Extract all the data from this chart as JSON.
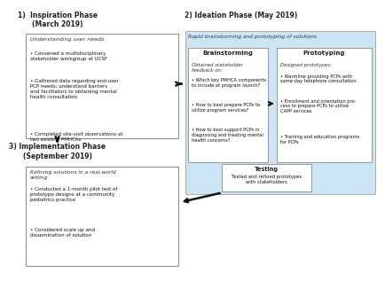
{
  "bg_color": "#ffffff",
  "light_blue_bg": "#cce5f5",
  "phase1": {
    "title": "1)  Inspiration Phase\n(March 2019)",
    "subtitle": "Understanding user needs",
    "bullets": [
      "Convened a multidisciplinary\nstakeholder workgroup at UCSF",
      "Gathered data regarding end-user\nPCP needs; understand barriers\nand facilitators to obtaining mental\nhealth consultation",
      "Completed site-visit observations at\ntwo existing PMHCAs"
    ]
  },
  "phase2": {
    "title": "2) Ideation Phase (May 2019)",
    "subtitle": "Rapid brainstorming and prototyping of solutions",
    "brainstorming_title": "Brainstorming",
    "brainstorming_subtitle": "Obtained stakeholder\nfeedback on:",
    "brainstorming_bullets": [
      "Which key PMHCA components\nto include at program launch?",
      "How to best prepare PCPs to\nutilize program services?",
      "How to best support PCPs in\ndiagnosing and treating mental\nhealth concerns?"
    ],
    "prototyping_title": "Prototyping",
    "prototyping_subtitle": "Designed prototypes:",
    "prototyping_bullets": [
      "Warmline providing PCPs with\nsame-day telephone consultation",
      "Enrollment and orientation pro-\ncess to prepare PCPs to utilize\nCAPP services",
      "Training and education programs\nfor PCPs"
    ],
    "testing_title": "Testing",
    "testing_text": "Tested and refined prototypes\nwith stakeholders"
  },
  "phase3": {
    "title": "3) Implementation Phase\n(September 2019)",
    "subtitle": "Refining solutions in a real-world\nsetting",
    "bullets": [
      "Conducted a 1-month pilot test of\nprototype designs at a community\npediatrics practice",
      "Considered scale up and\ndissemination of solution"
    ]
  }
}
